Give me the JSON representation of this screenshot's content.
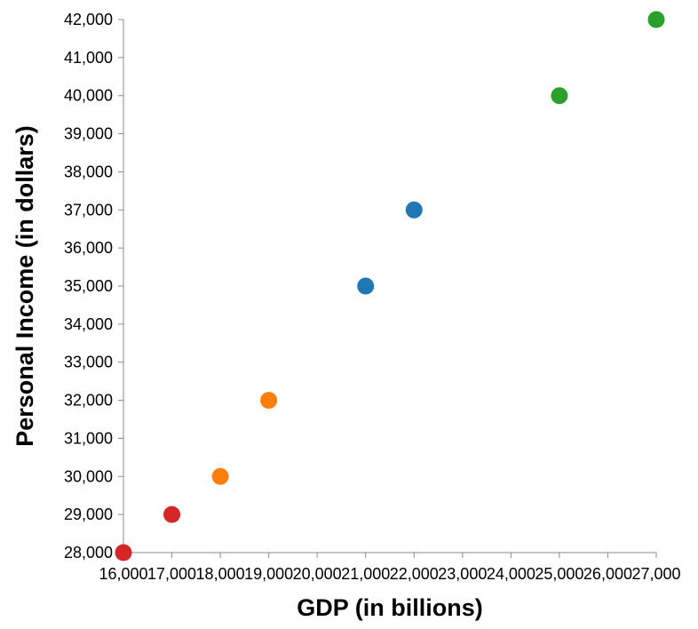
{
  "chart_data": {
    "type": "scatter",
    "xlabel": "GDP (in billions)",
    "ylabel": "Personal Income (in dollars)",
    "xlim": [
      16000,
      27000
    ],
    "ylim": [
      28000,
      42000
    ],
    "x_ticks": [
      16000,
      17000,
      18000,
      19000,
      20000,
      21000,
      22000,
      23000,
      24000,
      25000,
      26000,
      27000
    ],
    "x_tick_labels": [
      "16,000",
      "17,000",
      "18,000",
      "19,000",
      "20,000",
      "21,000",
      "22,000",
      "23,000",
      "24,000",
      "25,000",
      "26,000",
      "27,000"
    ],
    "y_ticks": [
      28000,
      29000,
      30000,
      31000,
      32000,
      33000,
      34000,
      35000,
      36000,
      37000,
      38000,
      39000,
      40000,
      41000,
      42000
    ],
    "y_tick_labels": [
      "28,000",
      "29,000",
      "30,000",
      "31,000",
      "32,000",
      "33,000",
      "34,000",
      "35,000",
      "36,000",
      "37,000",
      "38,000",
      "39,000",
      "40,000",
      "41,000",
      "42,000"
    ],
    "grid": false,
    "legend": "none",
    "points": [
      {
        "x": 16000,
        "y": 28000,
        "color": "#d62728"
      },
      {
        "x": 17000,
        "y": 29000,
        "color": "#d62728"
      },
      {
        "x": 18000,
        "y": 30000,
        "color": "#ff7f0e"
      },
      {
        "x": 19000,
        "y": 32000,
        "color": "#ff7f0e"
      },
      {
        "x": 21000,
        "y": 35000,
        "color": "#1f77b4"
      },
      {
        "x": 22000,
        "y": 37000,
        "color": "#1f77b4"
      },
      {
        "x": 25000,
        "y": 40000,
        "color": "#2ca02c"
      },
      {
        "x": 27000,
        "y": 42000,
        "color": "#2ca02c"
      }
    ]
  }
}
